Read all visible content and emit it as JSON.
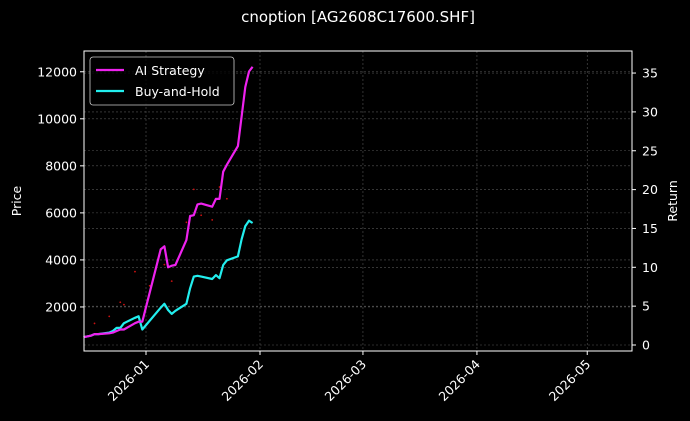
{
  "title": "cnoption [AG2608C17600.SHF]",
  "colors": {
    "background": "#000000",
    "ai_strategy": "#ee22ee",
    "buy_and_hold": "#22eeee",
    "scatter": "#cc1111",
    "grid": "#555555",
    "axis": "#ffffff"
  },
  "chart_data": {
    "type": "line",
    "title": "cnoption [AG2608C17600.SHF]",
    "xlabel": "",
    "ylabel": "Price",
    "ylabel_right": "Return",
    "x_ticks": [
      "2026-01",
      "2026-02",
      "2026-03",
      "2026-04",
      "2026-05"
    ],
    "y_ticks_left": [
      2000,
      4000,
      6000,
      8000,
      10000,
      12000
    ],
    "y_ticks_right": [
      0,
      5,
      10,
      15,
      20,
      25,
      30,
      35
    ],
    "ylim_left": [
      300,
      12900
    ],
    "ylim_right": [
      -0.9,
      37.5
    ],
    "grid": true,
    "legend_position": "upper left",
    "legend": [
      "AI Strategy",
      "Buy-and-Hold"
    ],
    "series": [
      {
        "name": "AI Strategy",
        "axis": "right",
        "x": [
          "2025-12-15",
          "2025-12-17",
          "2025-12-18",
          "2025-12-19",
          "2025-12-22",
          "2025-12-23",
          "2025-12-24",
          "2025-12-25",
          "2025-12-26",
          "2025-12-29",
          "2025-12-30",
          "2025-12-31",
          "2026-01-05",
          "2026-01-06",
          "2026-01-07",
          "2026-01-08",
          "2026-01-09",
          "2026-01-12",
          "2026-01-13",
          "2026-01-14",
          "2026-01-15",
          "2026-01-16",
          "2026-01-19",
          "2026-01-20",
          "2026-01-21",
          "2026-01-22",
          "2026-01-23",
          "2026-01-26",
          "2026-01-27",
          "2026-01-28",
          "2026-01-29",
          "2026-01-30"
        ],
        "values": [
          1.0,
          1.2,
          1.4,
          1.4,
          1.5,
          1.6,
          1.8,
          2.0,
          2.0,
          2.8,
          3.0,
          3.0,
          12.3,
          12.7,
          10.0,
          10.2,
          10.3,
          13.5,
          16.6,
          16.7,
          18.1,
          18.2,
          17.8,
          18.8,
          18.8,
          22.3,
          23.2,
          25.6,
          29.4,
          33.2,
          35.2,
          35.8
        ]
      },
      {
        "name": "Buy-and-Hold",
        "axis": "right",
        "x": [
          "2025-12-15",
          "2025-12-17",
          "2025-12-18",
          "2025-12-19",
          "2025-12-22",
          "2025-12-23",
          "2025-12-24",
          "2025-12-25",
          "2025-12-26",
          "2025-12-29",
          "2025-12-30",
          "2025-12-31",
          "2026-01-05",
          "2026-01-06",
          "2026-01-07",
          "2026-01-08",
          "2026-01-09",
          "2026-01-12",
          "2026-01-13",
          "2026-01-14",
          "2026-01-15",
          "2026-01-16",
          "2026-01-19",
          "2026-01-20",
          "2026-01-21",
          "2026-01-22",
          "2026-01-23",
          "2026-01-26",
          "2026-01-27",
          "2026-01-28",
          "2026-01-29",
          "2026-01-30"
        ],
        "values": [
          1.0,
          1.2,
          1.4,
          1.4,
          1.6,
          1.8,
          2.2,
          2.2,
          2.8,
          3.5,
          3.7,
          2.0,
          4.8,
          5.3,
          4.5,
          4.0,
          4.4,
          5.3,
          7.3,
          8.8,
          8.9,
          8.8,
          8.5,
          9.0,
          8.6,
          10.3,
          10.9,
          11.4,
          13.6,
          15.3,
          16.0,
          15.7
        ]
      },
      {
        "name": "Price (scatter)",
        "axis": "left",
        "type": "scatter",
        "note": "faint red dots behind lines",
        "points": [
          [
            "2025-12-18",
            1300
          ],
          [
            "2025-12-22",
            1600
          ],
          [
            "2025-12-25",
            2200
          ],
          [
            "2025-12-26",
            2100
          ],
          [
            "2025-12-29",
            3500
          ],
          [
            "2026-01-02",
            2900
          ],
          [
            "2026-01-06",
            3800
          ],
          [
            "2026-01-08",
            3100
          ],
          [
            "2026-01-12",
            5600
          ],
          [
            "2026-01-14",
            7000
          ],
          [
            "2026-01-16",
            5900
          ],
          [
            "2026-01-19",
            5700
          ],
          [
            "2026-01-21",
            7100
          ],
          [
            "2026-01-23",
            6600
          ]
        ]
      }
    ]
  }
}
